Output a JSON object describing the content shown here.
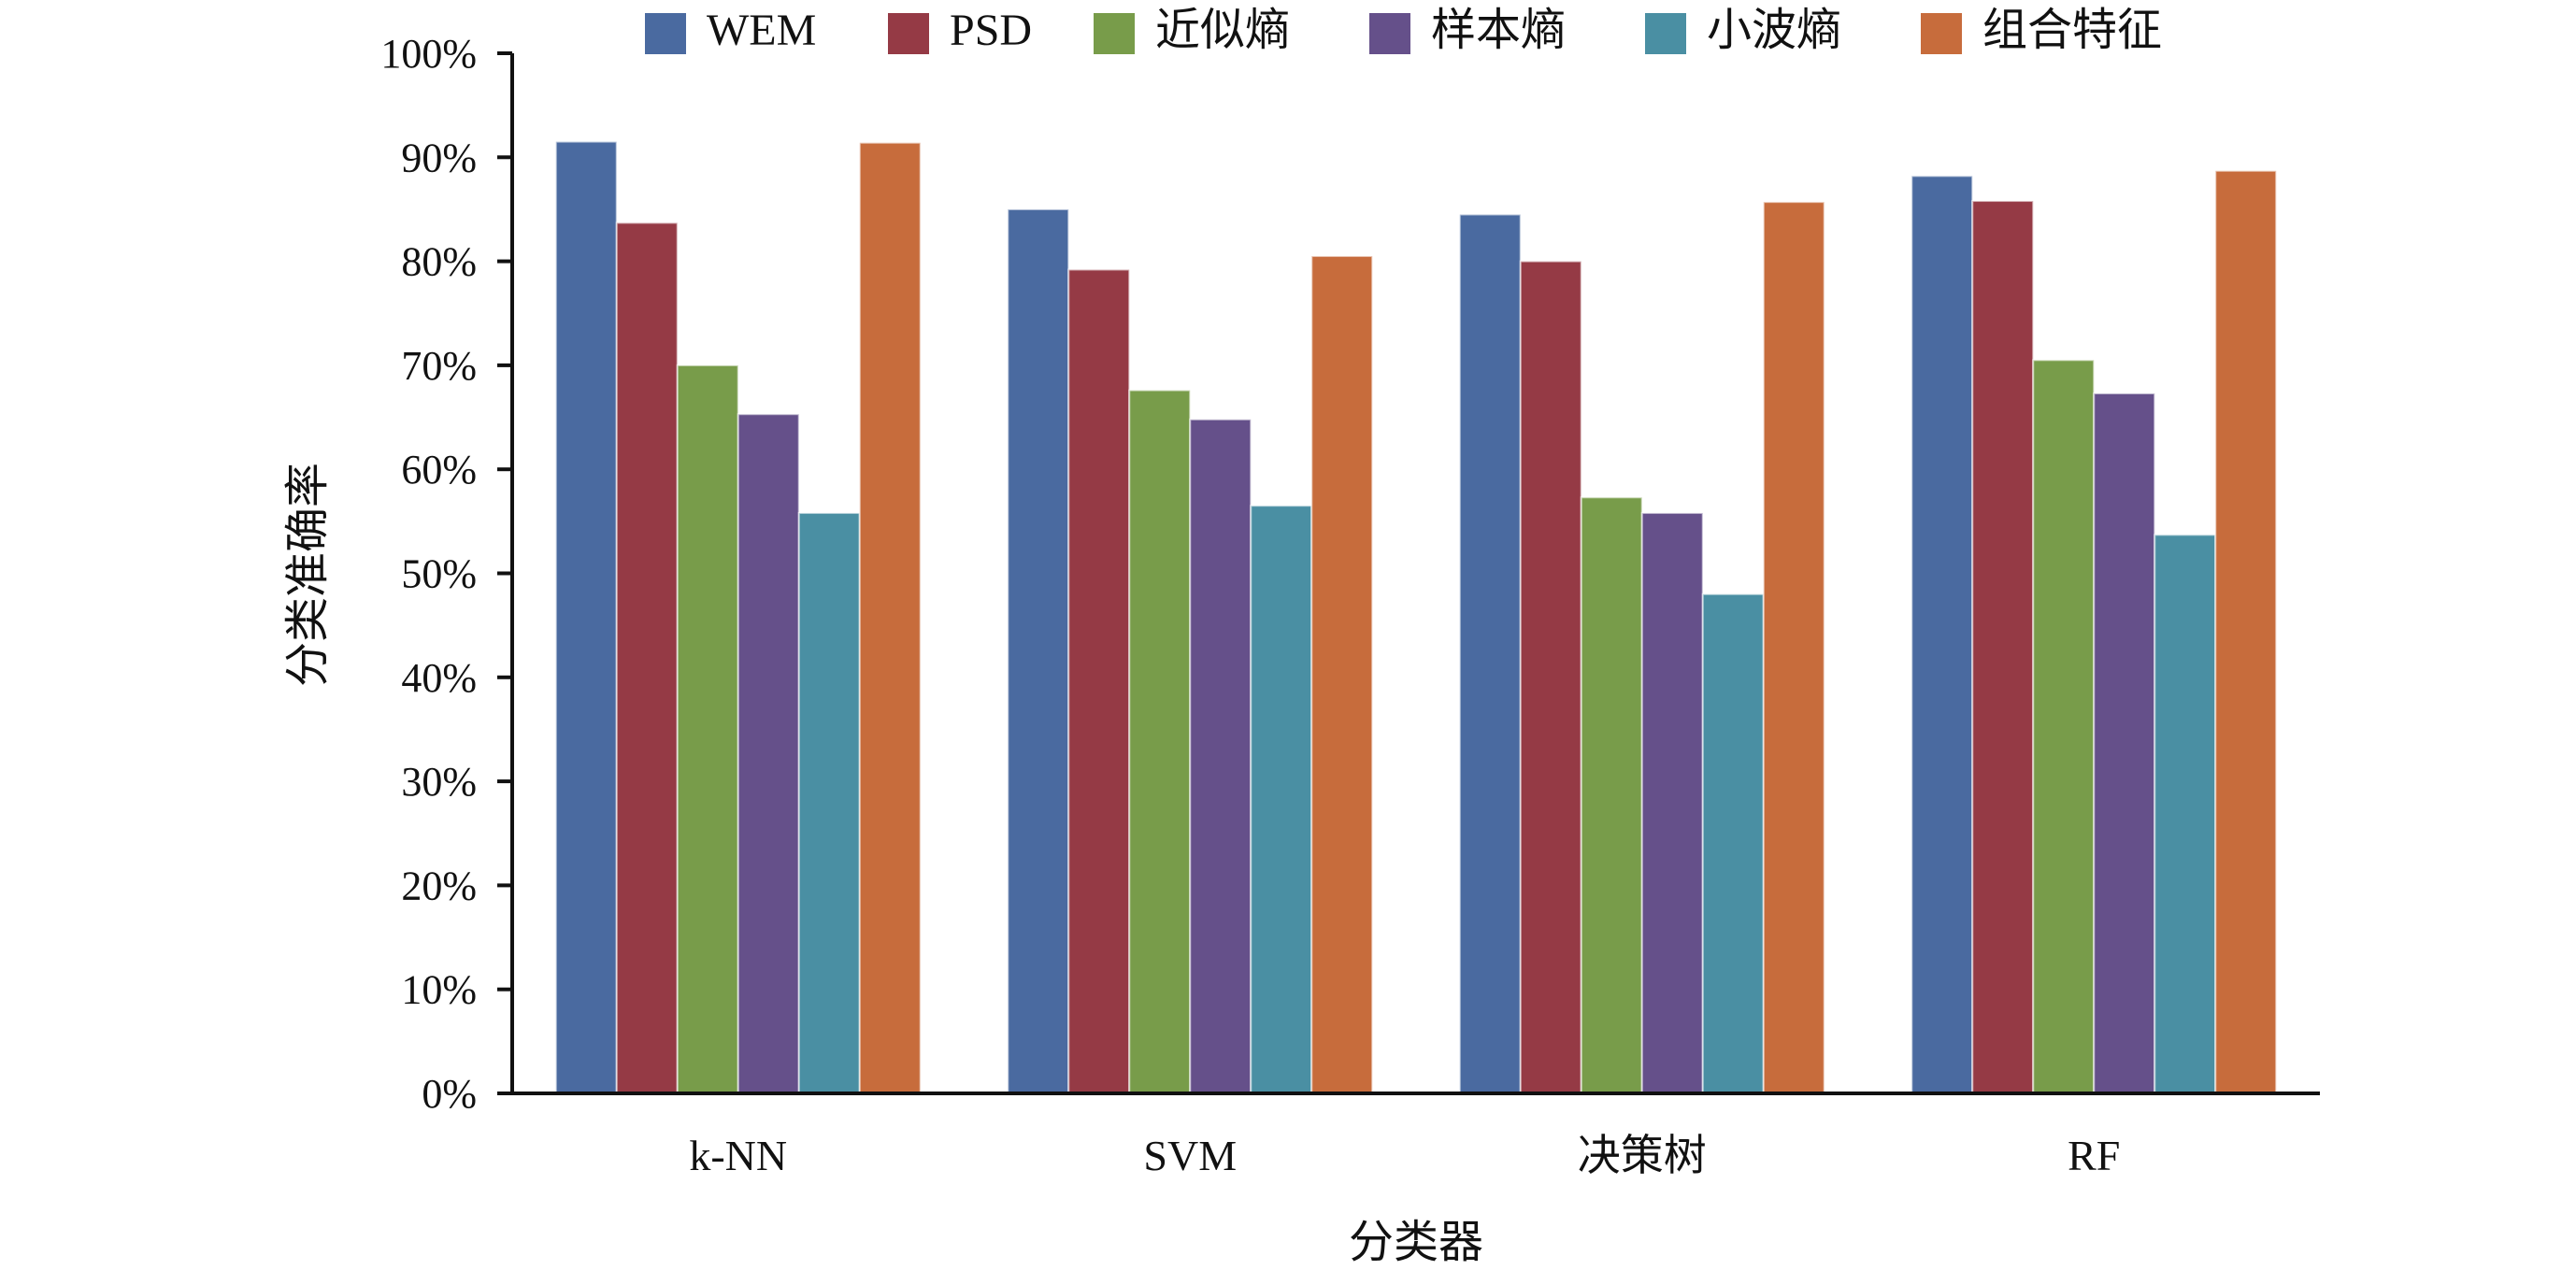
{
  "chart_data": {
    "type": "bar",
    "title": "",
    "xlabel": "分类器",
    "ylabel": "分类准确率",
    "categories": [
      "k-NN",
      "SVM",
      "决策树",
      "RF"
    ],
    "series": [
      {
        "name": "WEM",
        "color": "#4a6aa0",
        "values": [
          91.5,
          85.0,
          84.5,
          88.2
        ]
      },
      {
        "name": "PSD",
        "color": "#953a45",
        "values": [
          83.7,
          79.2,
          80.0,
          85.8
        ]
      },
      {
        "name": "近似熵",
        "color": "#789c4a",
        "values": [
          70.0,
          67.6,
          57.3,
          70.5
        ]
      },
      {
        "name": "样本熵",
        "color": "#65508a",
        "values": [
          65.3,
          64.8,
          55.8,
          67.3
        ]
      },
      {
        "name": "小波熵",
        "color": "#4a8fa3",
        "values": [
          55.8,
          56.5,
          48.0,
          53.7
        ]
      },
      {
        "name": "组合特征",
        "color": "#c76c3c",
        "values": [
          91.4,
          80.5,
          85.7,
          88.7
        ]
      }
    ],
    "ylim": [
      0,
      100
    ],
    "yticks": [
      0,
      10,
      20,
      30,
      40,
      50,
      60,
      70,
      80,
      90,
      100
    ],
    "ytick_labels": [
      "0%",
      "10%",
      "20%",
      "30%",
      "40%",
      "50%",
      "60%",
      "70%",
      "80%",
      "90%",
      "100%"
    ],
    "grid": false,
    "legend": "top"
  }
}
